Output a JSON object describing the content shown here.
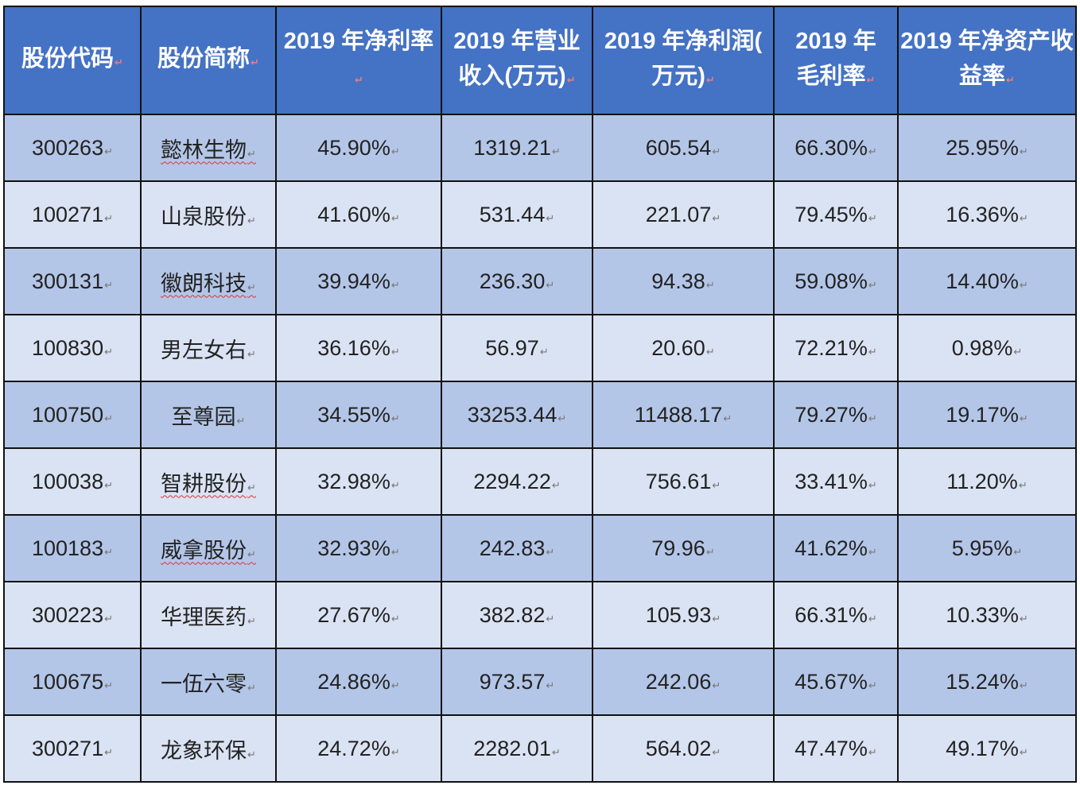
{
  "table": {
    "headers": [
      "股份代码",
      "股份简称",
      "2019 年净利率",
      "2019 年营业收入(万元)",
      "2019 年净利润( 万元)",
      "2019 年毛利率",
      "2019 年净资产收益率"
    ],
    "rows": [
      [
        "300263",
        "懿林生物",
        "45.90%",
        "1319.21",
        "605.54",
        "66.30%",
        "25.95%"
      ],
      [
        "100271",
        "山泉股份",
        "41.60%",
        "531.44",
        "221.07",
        "79.45%",
        "16.36%"
      ],
      [
        "300131",
        "徽朗科技",
        "39.94%",
        "236.30",
        "94.38",
        "59.08%",
        "14.40%"
      ],
      [
        "100830",
        "男左女右",
        "36.16%",
        "56.97",
        "20.60",
        "72.21%",
        "0.98%"
      ],
      [
        "100750",
        "至尊园",
        "34.55%",
        "33253.44",
        "11488.17",
        "79.27%",
        "19.17%"
      ],
      [
        "100038",
        "智耕股份",
        "32.98%",
        "2294.22",
        "756.61",
        "33.41%",
        "11.20%"
      ],
      [
        "100183",
        "威拿股份",
        "32.93%",
        "242.83",
        "79.96",
        "41.62%",
        "5.95%"
      ],
      [
        "300223",
        "华理医药",
        "27.67%",
        "382.82",
        "105.93",
        "66.31%",
        "10.33%"
      ],
      [
        "100675",
        "一伍六零",
        "24.86%",
        "973.57",
        "242.06",
        "45.67%",
        "15.24%"
      ],
      [
        "300271",
        "龙象环保",
        "24.72%",
        "2282.01",
        "564.02",
        "47.47%",
        "49.17%"
      ]
    ],
    "spellcheck_flagged_names": [
      "懿林生物",
      "徽朗科技",
      "智耕股份",
      "威拿股份"
    ]
  },
  "colors": {
    "header_bg": "#4472c4",
    "row_odd_bg": "#b4c6e7",
    "row_even_bg": "#dae3f3",
    "border": "#111111"
  }
}
